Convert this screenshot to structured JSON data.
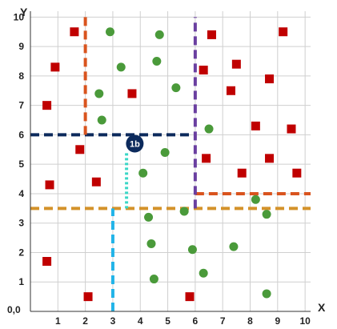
{
  "chart_data": {
    "type": "scatter",
    "title": "",
    "xlabel": "X",
    "ylabel": "Y",
    "origin_label": "0,0",
    "xlim": [
      0,
      10.2
    ],
    "ylim": [
      0,
      10.2
    ],
    "x_ticks": [
      1,
      2,
      3,
      4,
      5,
      6,
      7,
      8,
      9,
      10
    ],
    "y_ticks": [
      1,
      2,
      3,
      4,
      5,
      6,
      7,
      8,
      9,
      10
    ],
    "grid": true,
    "series": [
      {
        "marker": "square",
        "color": "#c00000",
        "points": [
          [
            1.6,
            9.5
          ],
          [
            0.9,
            8.3
          ],
          [
            0.6,
            7.0
          ],
          [
            1.8,
            5.5
          ],
          [
            0.7,
            4.3
          ],
          [
            2.4,
            4.4
          ],
          [
            3.7,
            7.4
          ],
          [
            0.6,
            1.7
          ],
          [
            2.1,
            0.5
          ],
          [
            5.8,
            0.5
          ],
          [
            6.6,
            9.4
          ],
          [
            6.3,
            8.2
          ],
          [
            7.5,
            8.4
          ],
          [
            7.3,
            7.5
          ],
          [
            8.7,
            7.9
          ],
          [
            9.2,
            9.5
          ],
          [
            8.2,
            6.3
          ],
          [
            9.5,
            6.2
          ],
          [
            6.4,
            5.2
          ],
          [
            7.7,
            4.7
          ],
          [
            8.7,
            5.2
          ],
          [
            9.7,
            4.7
          ]
        ]
      },
      {
        "marker": "circle",
        "color": "#4a9a3a",
        "points": [
          [
            2.9,
            9.5
          ],
          [
            4.7,
            9.4
          ],
          [
            3.3,
            8.3
          ],
          [
            4.6,
            8.5
          ],
          [
            2.5,
            7.4
          ],
          [
            2.6,
            6.5
          ],
          [
            5.3,
            7.6
          ],
          [
            6.5,
            6.2
          ],
          [
            4.9,
            5.4
          ],
          [
            4.1,
            4.7
          ],
          [
            4.3,
            3.2
          ],
          [
            5.6,
            3.4
          ],
          [
            4.4,
            2.3
          ],
          [
            5.9,
            2.1
          ],
          [
            4.5,
            1.1
          ],
          [
            6.3,
            1.3
          ],
          [
            7.4,
            2.2
          ],
          [
            8.2,
            3.8
          ],
          [
            8.6,
            3.3
          ],
          [
            8.6,
            0.6
          ]
        ]
      }
    ],
    "lines": [
      {
        "orientation": "h",
        "at": 6,
        "from": 0,
        "to": 6,
        "color": "#0c2a5c"
      },
      {
        "orientation": "h",
        "at": 3.5,
        "from": 0,
        "to": 10.2,
        "color": "#d4922a"
      },
      {
        "orientation": "h",
        "at": 4,
        "from": 6,
        "to": 10.2,
        "color": "#d9541e"
      },
      {
        "orientation": "v",
        "at": 2,
        "from": 6,
        "to": 10,
        "color": "#d9541e"
      },
      {
        "orientation": "v",
        "at": 6,
        "from": 3.5,
        "to": 10,
        "color": "#6a3fa0"
      },
      {
        "orientation": "v",
        "at": 3,
        "from": 0,
        "to": 3.5,
        "color": "#22b4e8"
      },
      {
        "orientation": "v",
        "at": 3.5,
        "from": 3.5,
        "to": 5.4,
        "color": "#3ad6c6",
        "style": "dotted"
      }
    ],
    "annotations": [
      {
        "text": "1b",
        "x": 3.8,
        "y": 5.7,
        "color": "#0c2a5c"
      }
    ]
  }
}
